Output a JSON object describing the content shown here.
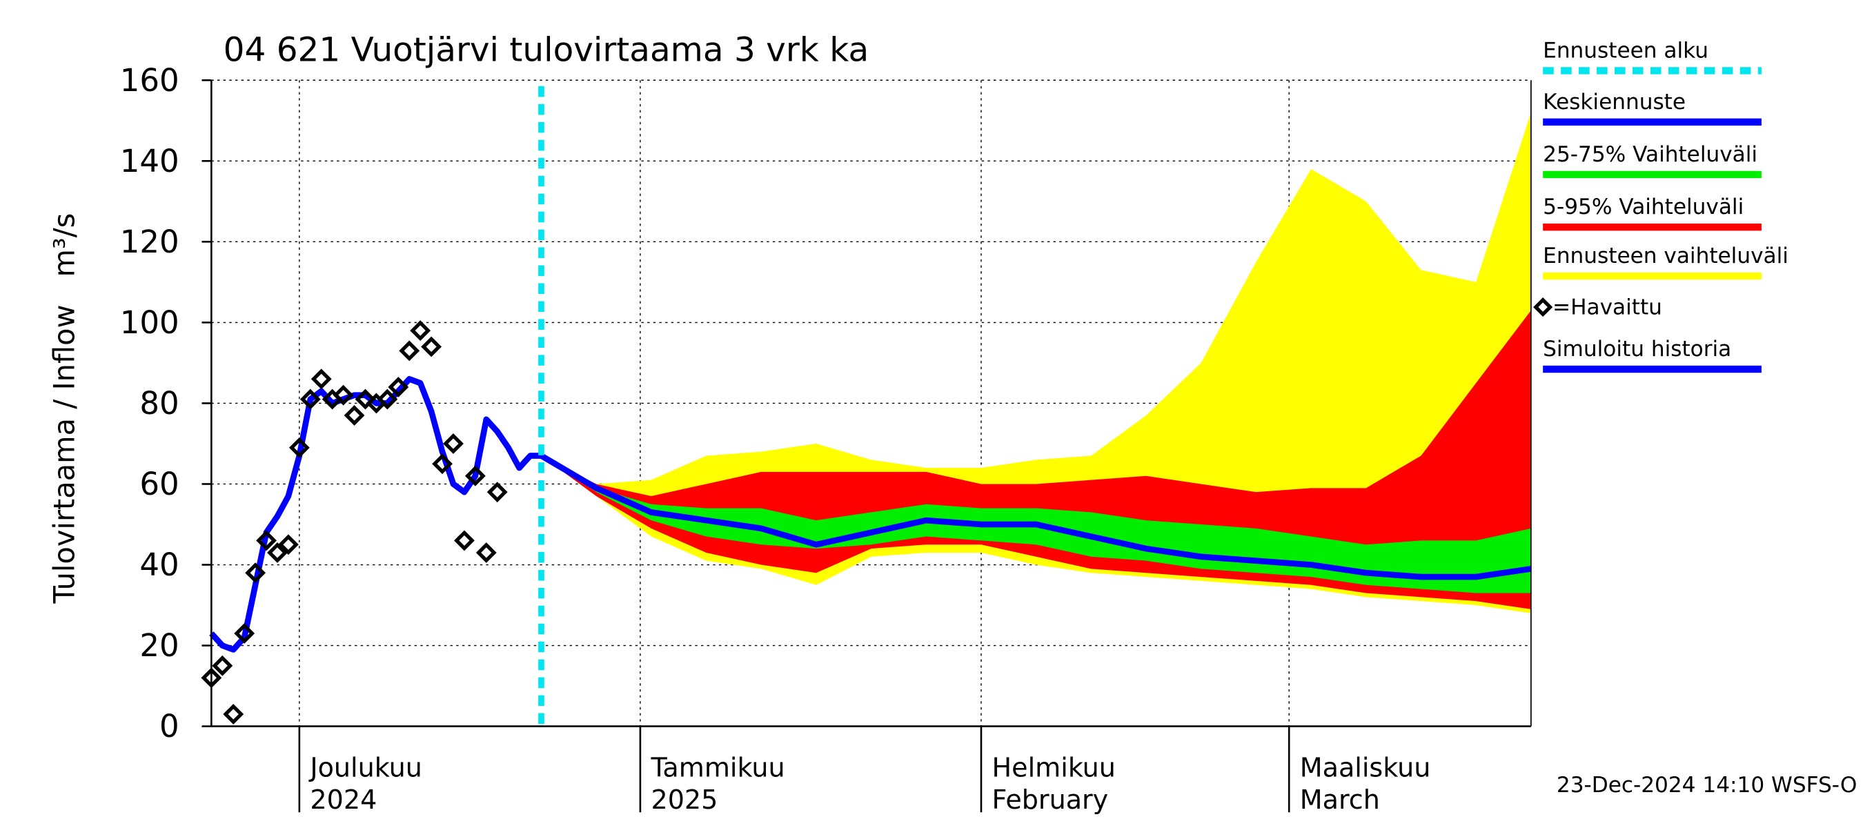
{
  "chart_data": {
    "type": "line",
    "title": "04 621 Vuotjärvi tulovirtaama 3 vrk ka",
    "ylabel": "Tulovirtaama / Inflow",
    "yunit": "m³/s",
    "ylim": [
      0,
      160
    ],
    "yticks": [
      0,
      20,
      40,
      60,
      80,
      100,
      120,
      140,
      160
    ],
    "xlim": [
      "2024-11-23",
      "2025-03-23"
    ],
    "xticks": [
      {
        "value": "2024-12-01",
        "label": "Joulukuu",
        "label2": "2024"
      },
      {
        "value": "2025-01-01",
        "label": "Tammikuu",
        "label2": "2025"
      },
      {
        "value": "2025-02-01",
        "label": "Helmikuu",
        "label2": "February"
      },
      {
        "value": "2025-03-01",
        "label": "Maaliskuu",
        "label2": "March"
      }
    ],
    "grid": true,
    "forecast_start": {
      "name": "Ennusteen alku",
      "x": "2024-12-23",
      "color": "#00e5ee"
    },
    "forecast_x": [
      "2024-12-23",
      "2024-12-28",
      "2025-01-02",
      "2025-01-07",
      "2025-01-12",
      "2025-01-17",
      "2025-01-22",
      "2025-01-27",
      "2025-02-01",
      "2025-02-06",
      "2025-02-11",
      "2025-02-16",
      "2025-02-21",
      "2025-02-26",
      "2025-03-03",
      "2025-03-08",
      "2025-03-13",
      "2025-03-18",
      "2025-03-23"
    ],
    "bands": [
      {
        "name": "Ennusteen vaihteluväli",
        "color": "#ffff00",
        "upper": [
          67,
          60,
          61,
          67,
          68,
          70,
          66,
          64,
          64,
          66,
          67,
          77,
          90,
          115,
          138,
          130,
          113,
          110,
          152
        ],
        "lower": [
          67,
          57,
          47,
          41,
          39,
          35,
          42,
          43,
          43,
          40,
          38,
          37,
          36,
          35,
          34,
          32,
          31,
          30,
          28
        ]
      },
      {
        "name": "5-95% Vaihteluväli",
        "color": "#ff0000",
        "upper": [
          67,
          60,
          57,
          60,
          63,
          63,
          63,
          63,
          60,
          60,
          61,
          62,
          60,
          58,
          59,
          59,
          67,
          85,
          103
        ],
        "lower": [
          67,
          57,
          49,
          43,
          40,
          38,
          44,
          45,
          45,
          42,
          39,
          38,
          37,
          36,
          35,
          33,
          32,
          31,
          29
        ]
      },
      {
        "name": "25-75% Vaihteluväli",
        "color": "#00ee00",
        "upper": [
          67,
          59,
          55,
          54,
          54,
          51,
          53,
          55,
          54,
          54,
          53,
          51,
          50,
          49,
          47,
          45,
          46,
          46,
          49
        ],
        "lower": [
          67,
          58,
          51,
          47,
          45,
          44,
          45,
          47,
          46,
          45,
          42,
          41,
          39,
          38,
          37,
          35,
          34,
          33,
          33
        ]
      }
    ],
    "series": [
      {
        "name": "Keskiennuste",
        "color": "#0000ff",
        "x": "forecast",
        "values": [
          67,
          59,
          53,
          51,
          49,
          45,
          48,
          51,
          50,
          50,
          47,
          44,
          42,
          41,
          40,
          38,
          37,
          37,
          39
        ]
      },
      {
        "name": "Simuloitu historia",
        "color": "#0000ff",
        "x": [
          "2024-11-23",
          "2024-11-24",
          "2024-11-25",
          "2024-11-26",
          "2024-11-27",
          "2024-11-28",
          "2024-11-29",
          "2024-11-30",
          "2024-12-01",
          "2024-12-02",
          "2024-12-03",
          "2024-12-04",
          "2024-12-05",
          "2024-12-06",
          "2024-12-07",
          "2024-12-08",
          "2024-12-09",
          "2024-12-10",
          "2024-12-11",
          "2024-12-12",
          "2024-12-13",
          "2024-12-14",
          "2024-12-15",
          "2024-12-16",
          "2024-12-17",
          "2024-12-18",
          "2024-12-19",
          "2024-12-20",
          "2024-12-21",
          "2024-12-22",
          "2024-12-23"
        ],
        "values": [
          23,
          20,
          19,
          22,
          35,
          48,
          52,
          57,
          67,
          81,
          83,
          80,
          81,
          82,
          82,
          80,
          80,
          83,
          86,
          85,
          78,
          68,
          60,
          58,
          62,
          76,
          73,
          69,
          64,
          67,
          67
        ]
      }
    ],
    "observed": {
      "name": "=Havaittu",
      "x": [
        "2024-11-23",
        "2024-11-24",
        "2024-11-25",
        "2024-11-26",
        "2024-11-27",
        "2024-11-28",
        "2024-11-29",
        "2024-11-30",
        "2024-12-01",
        "2024-12-02",
        "2024-12-03",
        "2024-12-04",
        "2024-12-05",
        "2024-12-06",
        "2024-12-07",
        "2024-12-08",
        "2024-12-09",
        "2024-12-10",
        "2024-12-11",
        "2024-12-12",
        "2024-12-13",
        "2024-12-14",
        "2024-12-15",
        "2024-12-16",
        "2024-12-17",
        "2024-12-18",
        "2024-12-19"
      ],
      "values": [
        12,
        15,
        3,
        23,
        38,
        46,
        43,
        45,
        69,
        81,
        86,
        81,
        82,
        77,
        81,
        80,
        81,
        84,
        93,
        98,
        94,
        65,
        70,
        46,
        62,
        43,
        58
      ]
    },
    "footer": "23-Dec-2024 14:10 WSFS-O"
  }
}
